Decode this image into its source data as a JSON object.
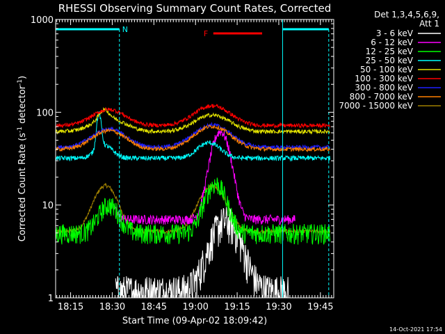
{
  "chart_data": {
    "type": "line",
    "title": "RHESSI Observing Summary Count Rates, Corrected",
    "xlabel": "Start Time (09-Apr-02 18:09:42)",
    "ylabel_main": "Corrected Count Rate (s",
    "ylabel_sup1": "-1",
    "ylabel_mid": " detector",
    "ylabel_sup2": "-1",
    "ylabel_end": ")",
    "yscale": "log",
    "ylim": [
      1,
      1000
    ],
    "xlim_minutes": [
      18.16,
      19.83
    ],
    "y_ticks": [
      {
        "value": 1,
        "label": "1"
      },
      {
        "value": 10,
        "label": "10"
      },
      {
        "value": 100,
        "label": "100"
      },
      {
        "value": 1000,
        "label": "1000"
      }
    ],
    "x_ticks": [
      {
        "value": 18.25,
        "label": "18:15"
      },
      {
        "value": 18.5,
        "label": "18:30"
      },
      {
        "value": 18.75,
        "label": "18:45"
      },
      {
        "value": 19.0,
        "label": "19:00"
      },
      {
        "value": 19.25,
        "label": "19:15"
      },
      {
        "value": 19.5,
        "label": "19:30"
      },
      {
        "value": 19.75,
        "label": "19:45"
      }
    ],
    "legend_header": [
      "Det 1,3,4,5,6,9,",
      "Att 1"
    ],
    "legend_placement": "right",
    "series": [
      {
        "name": "3 - 6 keV",
        "color": "#ffffff"
      },
      {
        "name": "6 - 12 keV",
        "color": "#ff00ff"
      },
      {
        "name": "12 - 25 keV",
        "color": "#00ff00"
      },
      {
        "name": "25 - 50 keV",
        "color": "#00ffff"
      },
      {
        "name": "50 - 100 keV",
        "color": "#e6e600"
      },
      {
        "name": "100 - 300 keV",
        "color": "#ff0000"
      },
      {
        "name": "300 - 800 keV",
        "color": "#2020ff"
      },
      {
        "name": "800 - 7000 keV",
        "color": "#ff8000"
      },
      {
        "name": "7000 - 15000 keV",
        "color": "#a08000"
      }
    ],
    "annotations": {
      "night_label": "N",
      "flare_label": "F",
      "night_color": "#00ffff",
      "flare_color": "#ff0000",
      "night_intervals": [
        [
          18.16,
          18.543
        ],
        [
          19.523,
          19.8
        ]
      ],
      "flare_interval": [
        19.107,
        19.4
      ]
    },
    "footer": "14-Oct-2021 17:54"
  }
}
